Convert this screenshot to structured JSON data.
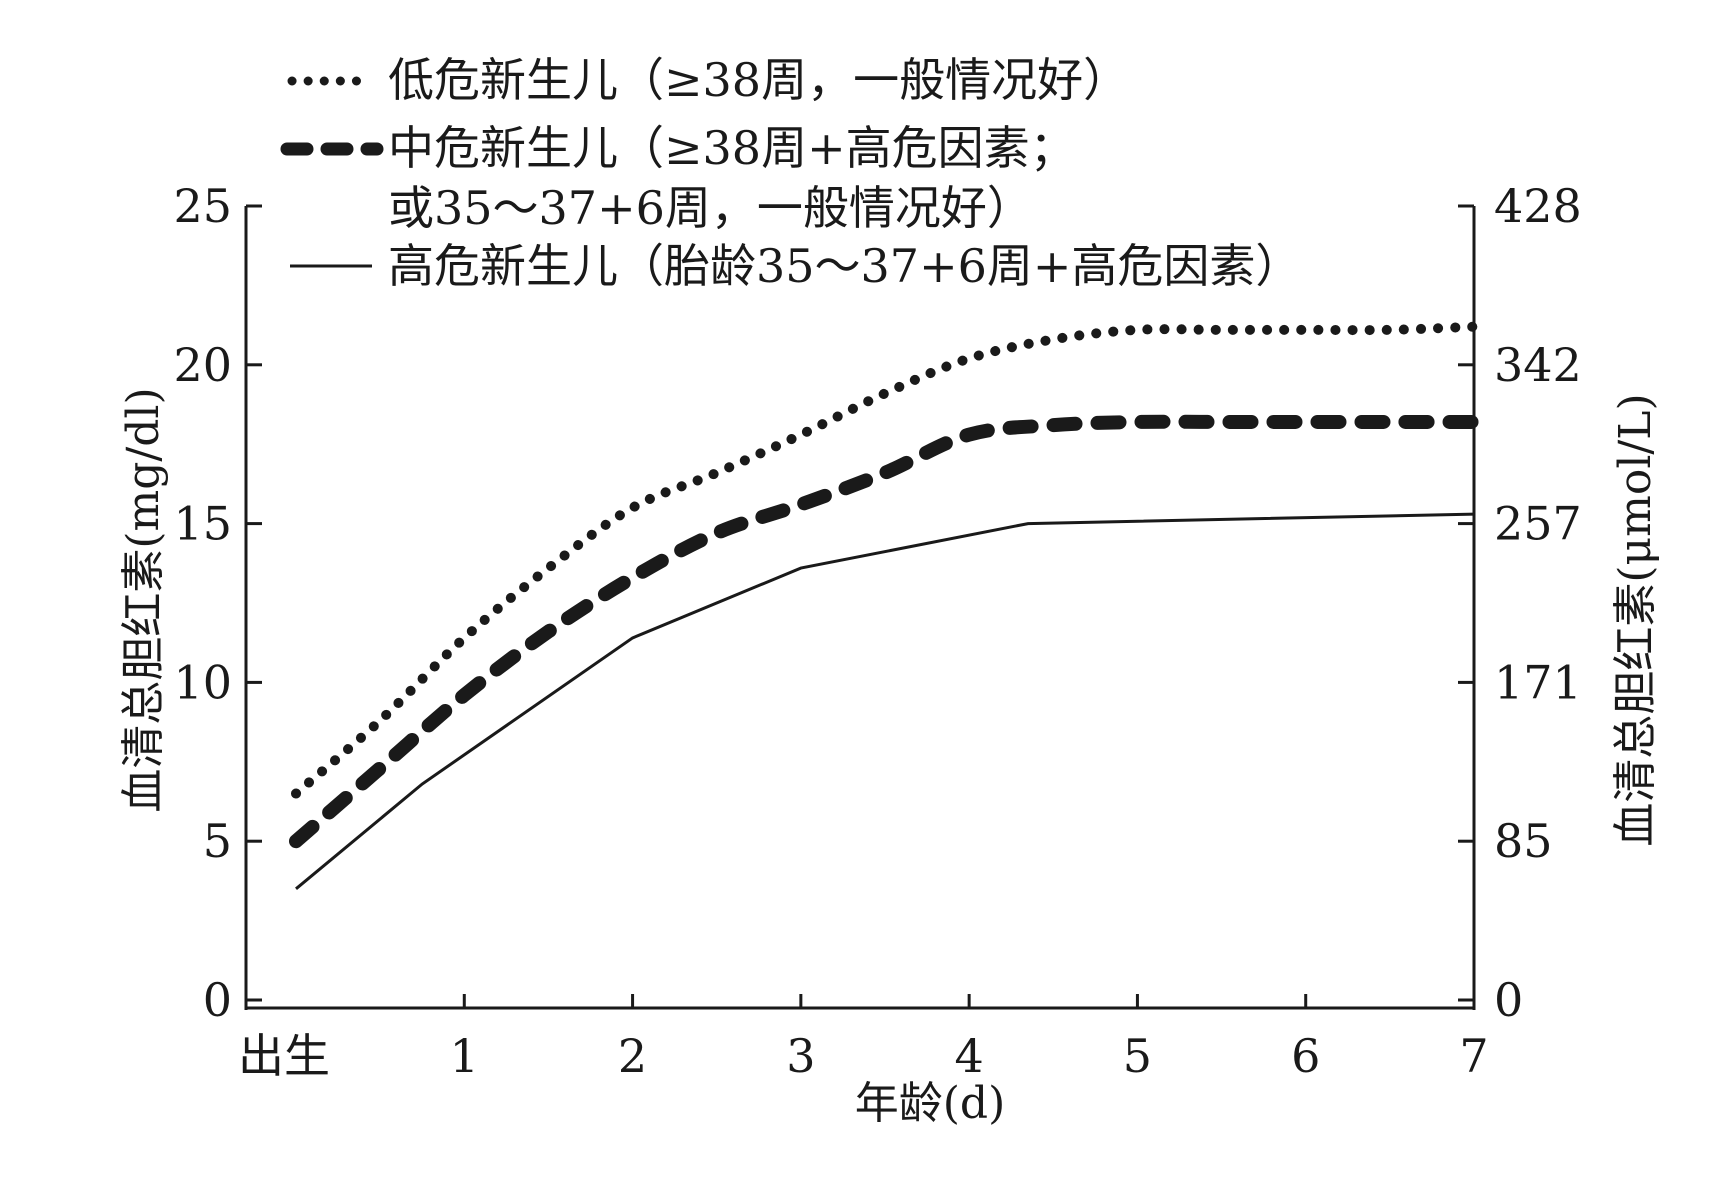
{
  "chart_data": {
    "type": "line",
    "x_tick_labels": [
      "出生",
      "1",
      "2",
      "3",
      "4",
      "5",
      "6",
      "7"
    ],
    "xlabel": "年龄(d)",
    "ylabel_left": "血清总胆红素(mg/dl)",
    "ylabel_right": "血清总胆红素(μmol/L)",
    "y_left_ticks": [
      "0",
      "5",
      "10",
      "15",
      "20",
      "25"
    ],
    "y_right_ticks": [
      "0",
      "85",
      "171",
      "257",
      "342",
      "428"
    ],
    "y_right_tick_values_mgdl": [
      0,
      5,
      10,
      15,
      20,
      25
    ],
    "xlim": [
      -0.3,
      7
    ],
    "ylim": [
      0,
      25
    ],
    "legend_position": "top-left",
    "series": [
      {
        "name": "低危新生儿（≥38周，一般情况好）",
        "style": "dotted",
        "x": [
          0,
          0.5,
          1,
          1.5,
          2,
          2.5,
          3,
          3.5,
          4,
          4.5,
          5,
          5.5,
          6,
          6.5,
          7
        ],
        "values": [
          6.5,
          8.8,
          11.4,
          13.6,
          15.5,
          16.6,
          17.8,
          19.1,
          20.2,
          20.8,
          21.1,
          21.1,
          21.1,
          21.1,
          21.2
        ]
      },
      {
        "name_line1": "中危新生儿（≥38周+高危因素；",
        "name_line2": "或35～37+6周，一般情况好）",
        "style": "dashed",
        "x": [
          0,
          0.5,
          1,
          1.5,
          2,
          2.5,
          3,
          3.5,
          4,
          4.5,
          5,
          5.5,
          6,
          6.5,
          7
        ],
        "values": [
          5.0,
          7.3,
          9.6,
          11.6,
          13.3,
          14.7,
          15.6,
          16.6,
          17.8,
          18.1,
          18.2,
          18.2,
          18.2,
          18.2,
          18.2
        ]
      },
      {
        "name": "高危新生儿（胎龄35～37+6周+高危因素）",
        "style": "solid",
        "x": [
          0,
          0.75,
          2,
          3,
          4.35,
          7
        ],
        "values": [
          3.5,
          6.8,
          11.4,
          13.6,
          15.0,
          15.3
        ]
      }
    ],
    "colors": {
      "line": "#1a1a1a",
      "axis": "#1a1a1a"
    }
  }
}
